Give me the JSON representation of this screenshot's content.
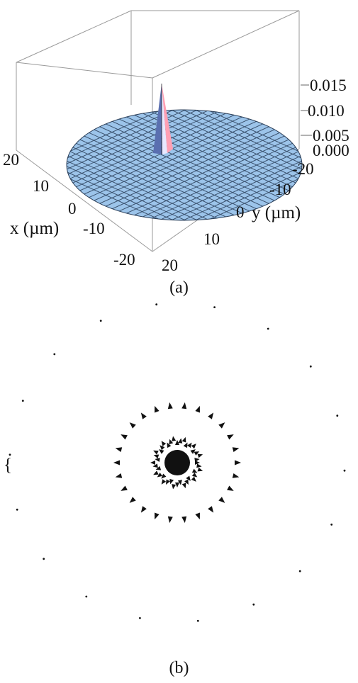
{
  "figure": {
    "panel_a": {
      "caption": "(a)",
      "surface_color": "#9cc4ea",
      "mesh_color": "#2a3e58",
      "peak_colors": [
        "#ff9fb3",
        "#e8e8ff",
        "#5a6fb0"
      ],
      "z_ticks": [
        "0.015",
        "0.010",
        "0.005",
        "0.000"
      ],
      "y_ticks": [
        "-20",
        "-10",
        "0",
        "10",
        "20"
      ],
      "x_ticks": [
        "20",
        "10",
        "0",
        "-10",
        "-20"
      ],
      "x_title": "x (µm)",
      "y_title": "y (µm)"
    },
    "panel_b": {
      "caption": "(b)",
      "left_brace": "{"
    }
  },
  "chart_data": [
    {
      "type": "surface",
      "xlabel": "x (µm)",
      "ylabel": "y (µm)",
      "zlabel": "",
      "xlim": [
        -20,
        20
      ],
      "ylim": [
        -20,
        20
      ],
      "zlim": [
        0,
        0.015
      ],
      "x_ticks": [
        20,
        10,
        0,
        -10,
        -20
      ],
      "y_ticks": [
        -20,
        -10,
        0,
        10,
        20
      ],
      "z_ticks": [
        0.015,
        0.01,
        0.005,
        0.0
      ],
      "base_z": 0.0,
      "peak": {
        "x": 0,
        "y": 0,
        "z": 0.015
      }
    },
    {
      "type": "scatter",
      "series": [
        {
          "values": "dense central cluster of point-like marks with outward-pointing arrowheads"
        },
        {
          "values": "inner ring of arrowheads"
        },
        {
          "values": "outer ring of sparse dots"
        }
      ]
    }
  ]
}
